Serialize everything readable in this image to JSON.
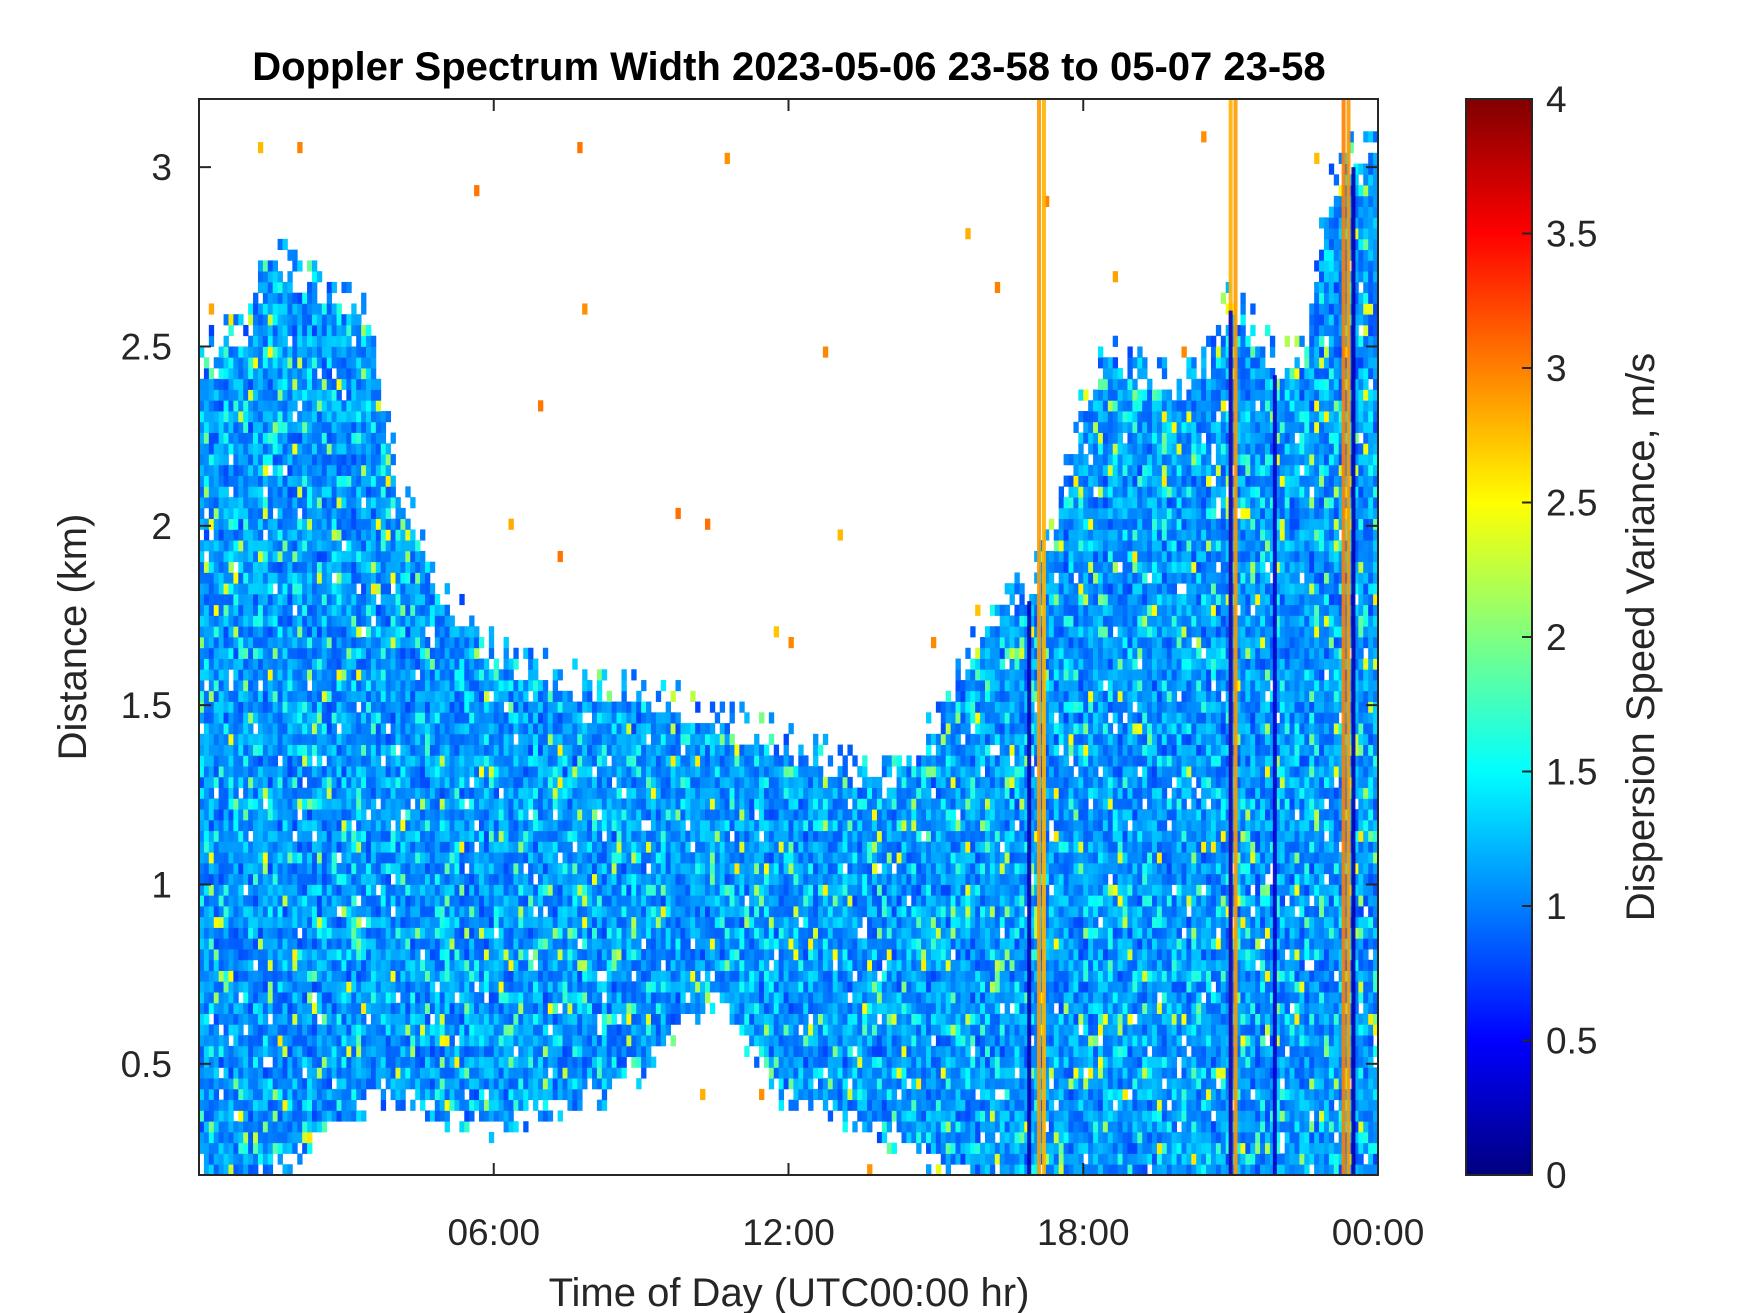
{
  "chart_data": {
    "type": "heatmap",
    "title": "Doppler Spectrum Width 2023-05-06 23-58 to 05-07 23-58",
    "xlabel": "Time of Day (UTC00:00 hr)",
    "ylabel": "Distance (km)",
    "colorbar_label": "Dispersion Speed Variance, m/s",
    "colormap": "jet",
    "xlim": [
      0,
      24
    ],
    "ylim": [
      0.19,
      3.19
    ],
    "clim": [
      0,
      4
    ],
    "x_ticks": [
      {
        "value": 6,
        "label": "06:00"
      },
      {
        "value": 12,
        "label": "12:00"
      },
      {
        "value": 18,
        "label": "18:00"
      },
      {
        "value": 24,
        "label": "00:00"
      }
    ],
    "y_ticks": [
      {
        "value": 0.5,
        "label": "0.5"
      },
      {
        "value": 1,
        "label": "1"
      },
      {
        "value": 1.5,
        "label": "1.5"
      },
      {
        "value": 2,
        "label": "2"
      },
      {
        "value": 2.5,
        "label": "2.5"
      },
      {
        "value": 3,
        "label": "3"
      }
    ],
    "colorbar_ticks": [
      {
        "value": 0,
        "label": "0"
      },
      {
        "value": 0.5,
        "label": "0.5"
      },
      {
        "value": 1,
        "label": "1"
      },
      {
        "value": 1.5,
        "label": "1.5"
      },
      {
        "value": 2,
        "label": "2"
      },
      {
        "value": 2.5,
        "label": "2.5"
      },
      {
        "value": 3,
        "label": "3"
      },
      {
        "value": 3.5,
        "label": "3.5"
      },
      {
        "value": 4,
        "label": "4"
      }
    ],
    "typical_value": 1.1,
    "echo_top_km": [
      [
        0.0,
        2.4
      ],
      [
        0.5,
        2.5
      ],
      [
        1.0,
        2.5
      ],
      [
        1.3,
        2.75
      ],
      [
        2.0,
        2.65
      ],
      [
        3.0,
        2.6
      ],
      [
        3.5,
        2.55
      ],
      [
        4.0,
        2.1
      ],
      [
        4.5,
        1.95
      ],
      [
        5.0,
        1.75
      ],
      [
        6.0,
        1.6
      ],
      [
        7.0,
        1.55
      ],
      [
        8.0,
        1.5
      ],
      [
        9.0,
        1.5
      ],
      [
        10.0,
        1.45
      ],
      [
        11.0,
        1.4
      ],
      [
        12.0,
        1.35
      ],
      [
        13.0,
        1.3
      ],
      [
        14.0,
        1.25
      ],
      [
        15.0,
        1.4
      ],
      [
        15.5,
        1.55
      ],
      [
        16.0,
        1.7
      ],
      [
        17.0,
        1.8
      ],
      [
        17.5,
        2.0
      ],
      [
        18.0,
        2.3
      ],
      [
        18.5,
        2.45
      ],
      [
        19.0,
        2.4
      ],
      [
        20.0,
        2.35
      ],
      [
        20.5,
        2.4
      ],
      [
        21.0,
        2.6
      ],
      [
        21.5,
        2.5
      ],
      [
        22.0,
        2.4
      ],
      [
        22.5,
        2.45
      ],
      [
        23.0,
        2.9
      ],
      [
        23.5,
        3.0
      ],
      [
        24.0,
        3.0
      ]
    ],
    "echo_base_km": [
      [
        0.0,
        0.19
      ],
      [
        1.0,
        0.19
      ],
      [
        2.5,
        0.32
      ],
      [
        3.5,
        0.42
      ],
      [
        4.5,
        0.42
      ],
      [
        5.0,
        0.37
      ],
      [
        6.0,
        0.35
      ],
      [
        7.0,
        0.4
      ],
      [
        8.0,
        0.42
      ],
      [
        9.0,
        0.5
      ],
      [
        10.0,
        0.65
      ],
      [
        10.5,
        0.7
      ],
      [
        11.0,
        0.62
      ],
      [
        11.5,
        0.5
      ],
      [
        12.0,
        0.42
      ],
      [
        13.0,
        0.38
      ],
      [
        14.0,
        0.32
      ],
      [
        15.0,
        0.25
      ],
      [
        16.0,
        0.19
      ],
      [
        24.0,
        0.19
      ]
    ],
    "streaks": [
      {
        "time": 17.1,
        "type": "orange",
        "value": 2.9
      },
      {
        "time": 17.2,
        "type": "orange",
        "value": 2.8
      },
      {
        "time": 21.0,
        "type": "orange",
        "value": 2.8
      },
      {
        "time": 21.1,
        "type": "orange",
        "value": 2.9
      },
      {
        "time": 23.3,
        "type": "orange",
        "value": 3.0
      },
      {
        "time": 23.4,
        "type": "orange",
        "value": 2.9
      },
      {
        "time": 16.9,
        "type": "dark",
        "value": 0.2
      },
      {
        "time": 21.0,
        "type": "dark",
        "value": 0.3
      },
      {
        "time": 21.9,
        "type": "dark",
        "value": 0.3
      },
      {
        "time": 23.5,
        "type": "dark",
        "value": 0.2
      }
    ],
    "grid": false,
    "legend": "colorbar-right"
  }
}
